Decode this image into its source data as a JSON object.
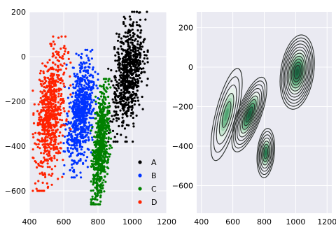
{
  "chart_data": [
    {
      "type": "scatter",
      "xlim": [
        400,
        1200
      ],
      "ylim": [
        -700,
        200
      ],
      "x_ticks": [
        400,
        600,
        800,
        1000,
        1200
      ],
      "y_ticks": [
        200,
        0,
        -200,
        -400,
        -600
      ],
      "grid": true,
      "background": "#eaeaf2",
      "legend_position": "lower-right",
      "series": [
        {
          "name": "A",
          "color": "#000000",
          "x_range": [
            860,
            1090
          ],
          "y_range": [
            -380,
            200
          ],
          "center": [
            975,
            -75
          ]
        },
        {
          "name": "B",
          "color": "#0033ff",
          "x_range": [
            600,
            800
          ],
          "y_range": [
            -540,
            30
          ],
          "center": [
            700,
            -250
          ]
        },
        {
          "name": "C",
          "color": "#008000",
          "x_range": [
            760,
            880
          ],
          "y_range": [
            -660,
            -100
          ],
          "center": [
            815,
            -400
          ]
        },
        {
          "name": "D",
          "color": "#ff2200",
          "x_range": [
            420,
            640
          ],
          "y_range": [
            -600,
            90
          ],
          "center": [
            525,
            -250
          ]
        }
      ]
    },
    {
      "type": "contour",
      "xlim": [
        370,
        1230
      ],
      "ylim": [
        -740,
        280
      ],
      "x_ticks": [
        400,
        600,
        800,
        1000,
        1200
      ],
      "y_ticks": [
        200,
        0,
        -200,
        -400,
        -600
      ],
      "grid": true,
      "background": "#eaeaf2",
      "colormap": "dark-green sequential",
      "peaks": [
        {
          "x": 1010,
          "y": -20
        },
        {
          "x": 700,
          "y": -230
        },
        {
          "x": 810,
          "y": -430
        },
        {
          "x": 550,
          "y": -230
        }
      ]
    }
  ]
}
